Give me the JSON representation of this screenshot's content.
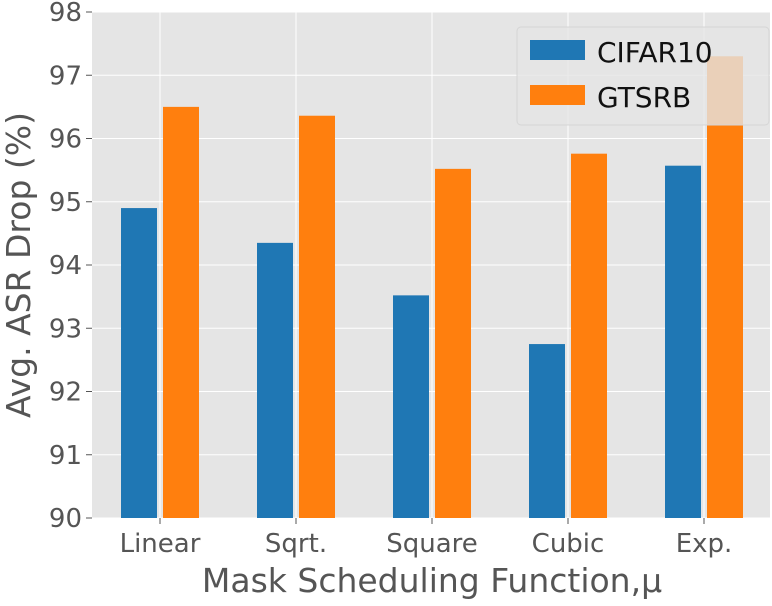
{
  "chart_data": {
    "type": "bar",
    "title": "",
    "xlabel": "Mask Scheduling Function,μ",
    "ylabel": "Avg. ASR Drop (%)",
    "categories": [
      "Linear",
      "Sqrt.",
      "Square",
      "Cubic",
      "Exp."
    ],
    "series": [
      {
        "name": "CIFAR10",
        "color": "#1f77b4",
        "values": [
          94.9,
          94.35,
          93.52,
          92.75,
          95.57
        ]
      },
      {
        "name": "GTSRB",
        "color": "#ff7f0e",
        "values": [
          96.5,
          96.36,
          95.52,
          95.76,
          97.3
        ]
      }
    ],
    "ylim": [
      90,
      98
    ],
    "yticks": [
      "90",
      "91",
      "92",
      "93",
      "94",
      "95",
      "96",
      "97",
      "98"
    ],
    "grid": true,
    "legend": "top-right",
    "background": "#e5e5e5"
  }
}
